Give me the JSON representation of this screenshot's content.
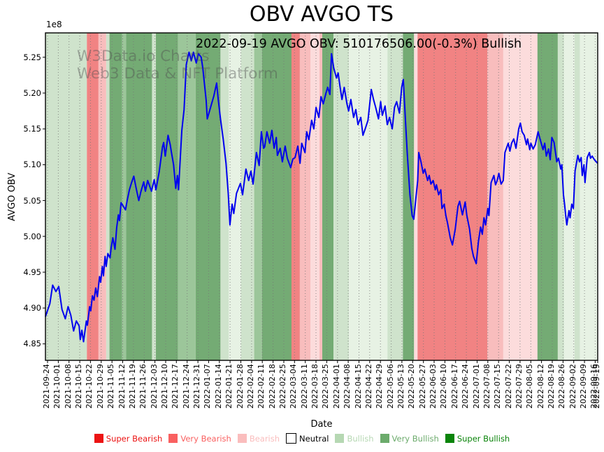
{
  "header": {
    "title": "OBV AVGO TS",
    "annotation": "2022-09-19 AVGO OBV: 510176506.00(-0.3%) Bullish"
  },
  "watermark": {
    "line1": "W3Data.io Charts",
    "line2": "Web3 Data & NFT Platform"
  },
  "chart_data": {
    "type": "line",
    "title": "OBV AVGO TS",
    "xlabel": "Date",
    "ylabel": "AVGO OBV",
    "y_offset_label": "1e8",
    "grid": "vertical-dotted",
    "legend_position": "bottom",
    "line_color": "#0000ee",
    "grid_color": "#777777",
    "ylim": [
      4.827,
      5.284
    ],
    "yticks": [
      4.85,
      4.9,
      4.95,
      5.0,
      5.05,
      5.1,
      5.15,
      5.2,
      5.25
    ],
    "ytick_labels": [
      "4.85",
      "4.90",
      "4.95",
      "5.00",
      "5.05",
      "5.10",
      "5.15",
      "5.20",
      "5.25"
    ],
    "xticks": [
      "2021-09-24",
      "2021-10-01",
      "2021-10-08",
      "2021-10-15",
      "2021-10-22",
      "2021-10-29",
      "2021-11-05",
      "2021-11-12",
      "2021-11-19",
      "2021-11-26",
      "2021-12-03",
      "2021-12-10",
      "2021-12-17",
      "2021-12-24",
      "2021-12-31",
      "2022-01-07",
      "2022-01-14",
      "2022-01-21",
      "2022-01-28",
      "2022-02-04",
      "2022-02-11",
      "2022-02-18",
      "2022-02-25",
      "2022-03-04",
      "2022-03-11",
      "2022-03-18",
      "2022-03-25",
      "2022-04-01",
      "2022-04-08",
      "2022-04-15",
      "2022-04-22",
      "2022-04-29",
      "2022-05-06",
      "2022-05-13",
      "2022-05-20",
      "2022-05-27",
      "2022-06-03",
      "2022-06-10",
      "2022-06-17",
      "2022-06-24",
      "2022-07-01",
      "2022-07-08",
      "2022-07-15",
      "2022-07-22",
      "2022-07-29",
      "2022-08-05",
      "2022-08-12",
      "2022-08-19",
      "2022-08-26",
      "2022-09-02",
      "2022-09-09",
      "2022-09-16",
      "2022-09-19"
    ],
    "band_colors": {
      "paleGreen": "#e7f2e4",
      "lightGreen": "#cfe3cc",
      "midGreen": "#9cc69a",
      "green": "#74ab74",
      "palePink": "#fcdcdc",
      "pink": "#f8bdbd",
      "red": "#f18383"
    },
    "bands": [
      [
        0.0,
        0.075,
        "lightGreen"
      ],
      [
        0.075,
        0.096,
        "red"
      ],
      [
        0.096,
        0.11,
        "pink"
      ],
      [
        0.11,
        0.116,
        "lightGreen"
      ],
      [
        0.116,
        0.139,
        "green"
      ],
      [
        0.139,
        0.146,
        "midGreen"
      ],
      [
        0.146,
        0.193,
        "green"
      ],
      [
        0.193,
        0.2,
        "lightGreen"
      ],
      [
        0.2,
        0.24,
        "green"
      ],
      [
        0.24,
        0.272,
        "midGreen"
      ],
      [
        0.272,
        0.317,
        "green"
      ],
      [
        0.317,
        0.332,
        "lightGreen"
      ],
      [
        0.332,
        0.354,
        "paleGreen"
      ],
      [
        0.354,
        0.378,
        "lightGreen"
      ],
      [
        0.378,
        0.392,
        "midGreen"
      ],
      [
        0.392,
        0.4455,
        "green"
      ],
      [
        0.4455,
        0.4607,
        "red"
      ],
      [
        0.4607,
        0.4797,
        "pink"
      ],
      [
        0.4797,
        0.4962,
        "palePink"
      ],
      [
        0.4962,
        0.5013,
        "pink"
      ],
      [
        0.5013,
        0.5216,
        "green"
      ],
      [
        0.5216,
        0.5495,
        "lightGreen"
      ],
      [
        0.5495,
        0.6193,
        "paleGreen"
      ],
      [
        0.6193,
        0.6472,
        "lightGreen"
      ],
      [
        0.6472,
        0.6675,
        "green"
      ],
      [
        0.6675,
        0.6738,
        "palePink"
      ],
      [
        0.6738,
        0.8,
        "red"
      ],
      [
        0.8,
        0.829,
        "pink"
      ],
      [
        0.829,
        0.8909,
        "palePink"
      ],
      [
        0.8909,
        0.9277,
        "green"
      ],
      [
        0.9277,
        0.9391,
        "lightGreen"
      ],
      [
        0.9391,
        0.958,
        "paleGreen"
      ],
      [
        0.958,
        0.968,
        "lightGreen"
      ],
      [
        0.968,
        1.0,
        "paleGreen"
      ]
    ],
    "series_name": "AVGO OBV (1e8)",
    "points": [
      [
        0.0,
        4.888
      ],
      [
        0.008,
        4.906
      ],
      [
        0.013,
        4.932
      ],
      [
        0.019,
        4.923
      ],
      [
        0.024,
        4.93
      ],
      [
        0.03,
        4.898
      ],
      [
        0.036,
        4.885
      ],
      [
        0.041,
        4.902
      ],
      [
        0.046,
        4.89
      ],
      [
        0.051,
        4.868
      ],
      [
        0.056,
        4.882
      ],
      [
        0.061,
        4.875
      ],
      [
        0.063,
        4.856
      ],
      [
        0.066,
        4.869
      ],
      [
        0.069,
        4.853
      ],
      [
        0.074,
        4.882
      ],
      [
        0.076,
        4.876
      ],
      [
        0.08,
        4.902
      ],
      [
        0.082,
        4.896
      ],
      [
        0.085,
        4.917
      ],
      [
        0.088,
        4.911
      ],
      [
        0.091,
        4.928
      ],
      [
        0.094,
        4.916
      ],
      [
        0.098,
        4.944
      ],
      [
        0.1,
        4.936
      ],
      [
        0.103,
        4.958
      ],
      [
        0.105,
        4.945
      ],
      [
        0.108,
        4.972
      ],
      [
        0.11,
        4.958
      ],
      [
        0.113,
        4.976
      ],
      [
        0.117,
        4.97
      ],
      [
        0.119,
        4.984
      ],
      [
        0.122,
        4.998
      ],
      [
        0.126,
        4.982
      ],
      [
        0.129,
        5.012
      ],
      [
        0.132,
        5.03
      ],
      [
        0.134,
        5.022
      ],
      [
        0.137,
        5.047
      ],
      [
        0.141,
        5.042
      ],
      [
        0.145,
        5.037
      ],
      [
        0.148,
        5.05
      ],
      [
        0.152,
        5.065
      ],
      [
        0.156,
        5.075
      ],
      [
        0.16,
        5.084
      ],
      [
        0.164,
        5.068
      ],
      [
        0.169,
        5.05
      ],
      [
        0.173,
        5.063
      ],
      [
        0.178,
        5.076
      ],
      [
        0.181,
        5.063
      ],
      [
        0.185,
        5.078
      ],
      [
        0.192,
        5.063
      ],
      [
        0.197,
        5.079
      ],
      [
        0.2,
        5.065
      ],
      [
        0.206,
        5.09
      ],
      [
        0.212,
        5.125
      ],
      [
        0.214,
        5.131
      ],
      [
        0.217,
        5.112
      ],
      [
        0.222,
        5.141
      ],
      [
        0.226,
        5.128
      ],
      [
        0.228,
        5.118
      ],
      [
        0.232,
        5.1
      ],
      [
        0.236,
        5.067
      ],
      [
        0.239,
        5.085
      ],
      [
        0.241,
        5.065
      ],
      [
        0.245,
        5.12
      ],
      [
        0.247,
        5.148
      ],
      [
        0.251,
        5.177
      ],
      [
        0.255,
        5.24
      ],
      [
        0.26,
        5.257
      ],
      [
        0.264,
        5.245
      ],
      [
        0.268,
        5.257
      ],
      [
        0.273,
        5.242
      ],
      [
        0.277,
        5.255
      ],
      [
        0.282,
        5.25
      ],
      [
        0.285,
        5.235
      ],
      [
        0.291,
        5.19
      ],
      [
        0.293,
        5.164
      ],
      [
        0.299,
        5.18
      ],
      [
        0.305,
        5.196
      ],
      [
        0.31,
        5.214
      ],
      [
        0.313,
        5.19
      ],
      [
        0.317,
        5.164
      ],
      [
        0.322,
        5.135
      ],
      [
        0.327,
        5.102
      ],
      [
        0.331,
        5.06
      ],
      [
        0.334,
        5.016
      ],
      [
        0.338,
        5.045
      ],
      [
        0.341,
        5.032
      ],
      [
        0.346,
        5.06
      ],
      [
        0.353,
        5.074
      ],
      [
        0.357,
        5.058
      ],
      [
        0.363,
        5.094
      ],
      [
        0.368,
        5.078
      ],
      [
        0.372,
        5.091
      ],
      [
        0.376,
        5.073
      ],
      [
        0.382,
        5.117
      ],
      [
        0.387,
        5.099
      ],
      [
        0.391,
        5.146
      ],
      [
        0.395,
        5.123
      ],
      [
        0.397,
        5.125
      ],
      [
        0.401,
        5.146
      ],
      [
        0.406,
        5.13
      ],
      [
        0.41,
        5.148
      ],
      [
        0.414,
        5.123
      ],
      [
        0.418,
        5.138
      ],
      [
        0.42,
        5.113
      ],
      [
        0.425,
        5.123
      ],
      [
        0.429,
        5.104
      ],
      [
        0.434,
        5.126
      ],
      [
        0.438,
        5.109
      ],
      [
        0.444,
        5.096
      ],
      [
        0.448,
        5.108
      ],
      [
        0.452,
        5.11
      ],
      [
        0.457,
        5.126
      ],
      [
        0.461,
        5.102
      ],
      [
        0.464,
        5.13
      ],
      [
        0.47,
        5.117
      ],
      [
        0.473,
        5.146
      ],
      [
        0.477,
        5.135
      ],
      [
        0.482,
        5.162
      ],
      [
        0.486,
        5.15
      ],
      [
        0.49,
        5.18
      ],
      [
        0.495,
        5.166
      ],
      [
        0.499,
        5.195
      ],
      [
        0.503,
        5.185
      ],
      [
        0.508,
        5.2
      ],
      [
        0.511,
        5.208
      ],
      [
        0.515,
        5.198
      ],
      [
        0.518,
        5.255
      ],
      [
        0.522,
        5.235
      ],
      [
        0.527,
        5.221
      ],
      [
        0.53,
        5.228
      ],
      [
        0.533,
        5.211
      ],
      [
        0.537,
        5.191
      ],
      [
        0.541,
        5.208
      ],
      [
        0.546,
        5.185
      ],
      [
        0.549,
        5.175
      ],
      [
        0.553,
        5.191
      ],
      [
        0.558,
        5.166
      ],
      [
        0.562,
        5.177
      ],
      [
        0.566,
        5.156
      ],
      [
        0.571,
        5.166
      ],
      [
        0.575,
        5.141
      ],
      [
        0.579,
        5.15
      ],
      [
        0.584,
        5.162
      ],
      [
        0.59,
        5.205
      ],
      [
        0.594,
        5.191
      ],
      [
        0.598,
        5.18
      ],
      [
        0.603,
        5.164
      ],
      [
        0.607,
        5.188
      ],
      [
        0.61,
        5.169
      ],
      [
        0.615,
        5.182
      ],
      [
        0.619,
        5.156
      ],
      [
        0.623,
        5.166
      ],
      [
        0.628,
        5.15
      ],
      [
        0.632,
        5.18
      ],
      [
        0.636,
        5.188
      ],
      [
        0.641,
        5.172
      ],
      [
        0.645,
        5.208
      ],
      [
        0.648,
        5.219
      ],
      [
        0.652,
        5.16
      ],
      [
        0.655,
        5.117
      ],
      [
        0.66,
        5.058
      ],
      [
        0.664,
        5.029
      ],
      [
        0.667,
        5.024
      ],
      [
        0.671,
        5.055
      ],
      [
        0.674,
        5.078
      ],
      [
        0.676,
        5.117
      ],
      [
        0.68,
        5.104
      ],
      [
        0.684,
        5.088
      ],
      [
        0.687,
        5.094
      ],
      [
        0.692,
        5.078
      ],
      [
        0.695,
        5.085
      ],
      [
        0.698,
        5.073
      ],
      [
        0.702,
        5.078
      ],
      [
        0.706,
        5.065
      ],
      [
        0.708,
        5.072
      ],
      [
        0.712,
        5.058
      ],
      [
        0.716,
        5.065
      ],
      [
        0.718,
        5.039
      ],
      [
        0.722,
        5.045
      ],
      [
        0.725,
        5.029
      ],
      [
        0.728,
        5.019
      ],
      [
        0.733,
        4.998
      ],
      [
        0.737,
        4.988
      ],
      [
        0.742,
        5.01
      ],
      [
        0.747,
        5.042
      ],
      [
        0.75,
        5.049
      ],
      [
        0.755,
        5.03
      ],
      [
        0.76,
        5.048
      ],
      [
        0.763,
        5.029
      ],
      [
        0.768,
        5.01
      ],
      [
        0.772,
        4.983
      ],
      [
        0.775,
        4.972
      ],
      [
        0.78,
        4.962
      ],
      [
        0.784,
        4.993
      ],
      [
        0.788,
        5.013
      ],
      [
        0.791,
        5.003
      ],
      [
        0.794,
        5.026
      ],
      [
        0.797,
        5.016
      ],
      [
        0.801,
        5.039
      ],
      [
        0.803,
        5.029
      ],
      [
        0.807,
        5.075
      ],
      [
        0.812,
        5.085
      ],
      [
        0.815,
        5.072
      ],
      [
        0.818,
        5.078
      ],
      [
        0.821,
        5.088
      ],
      [
        0.825,
        5.073
      ],
      [
        0.829,
        5.078
      ],
      [
        0.832,
        5.117
      ],
      [
        0.838,
        5.13
      ],
      [
        0.841,
        5.119
      ],
      [
        0.844,
        5.13
      ],
      [
        0.848,
        5.136
      ],
      [
        0.852,
        5.123
      ],
      [
        0.857,
        5.15
      ],
      [
        0.86,
        5.158
      ],
      [
        0.863,
        5.146
      ],
      [
        0.867,
        5.141
      ],
      [
        0.871,
        5.128
      ],
      [
        0.873,
        5.136
      ],
      [
        0.877,
        5.121
      ],
      [
        0.879,
        5.13
      ],
      [
        0.883,
        5.122
      ],
      [
        0.887,
        5.128
      ],
      [
        0.892,
        5.146
      ],
      [
        0.896,
        5.135
      ],
      [
        0.901,
        5.121
      ],
      [
        0.904,
        5.13
      ],
      [
        0.907,
        5.112
      ],
      [
        0.911,
        5.122
      ],
      [
        0.914,
        5.107
      ],
      [
        0.917,
        5.138
      ],
      [
        0.921,
        5.131
      ],
      [
        0.926,
        5.104
      ],
      [
        0.929,
        5.109
      ],
      [
        0.933,
        5.094
      ],
      [
        0.935,
        5.1
      ],
      [
        0.938,
        5.058
      ],
      [
        0.94,
        5.045
      ],
      [
        0.942,
        5.029
      ],
      [
        0.944,
        5.016
      ],
      [
        0.948,
        5.036
      ],
      [
        0.95,
        5.026
      ],
      [
        0.953,
        5.045
      ],
      [
        0.956,
        5.039
      ],
      [
        0.959,
        5.091
      ],
      [
        0.964,
        5.113
      ],
      [
        0.967,
        5.104
      ],
      [
        0.97,
        5.11
      ],
      [
        0.972,
        5.085
      ],
      [
        0.975,
        5.1
      ],
      [
        0.977,
        5.075
      ],
      [
        0.981,
        5.11
      ],
      [
        0.985,
        5.117
      ],
      [
        0.987,
        5.109
      ],
      [
        0.99,
        5.112
      ],
      [
        0.994,
        5.107
      ],
      [
        1.0,
        5.102
      ]
    ],
    "legend": [
      {
        "label": "Super Bearish",
        "color": "#ec1313"
      },
      {
        "label": "Very Bearish",
        "color": "#f96060"
      },
      {
        "label": "Bearish",
        "color": "#fabdbd"
      },
      {
        "label": "Neutral",
        "color": "#ffffff",
        "text_color": "#000000",
        "border": "#000000"
      },
      {
        "label": "Bullish",
        "color": "#b6d8b3"
      },
      {
        "label": "Very Bullish",
        "color": "#6cab6c"
      },
      {
        "label": "Super Bullish",
        "color": "#0a840a"
      }
    ]
  }
}
